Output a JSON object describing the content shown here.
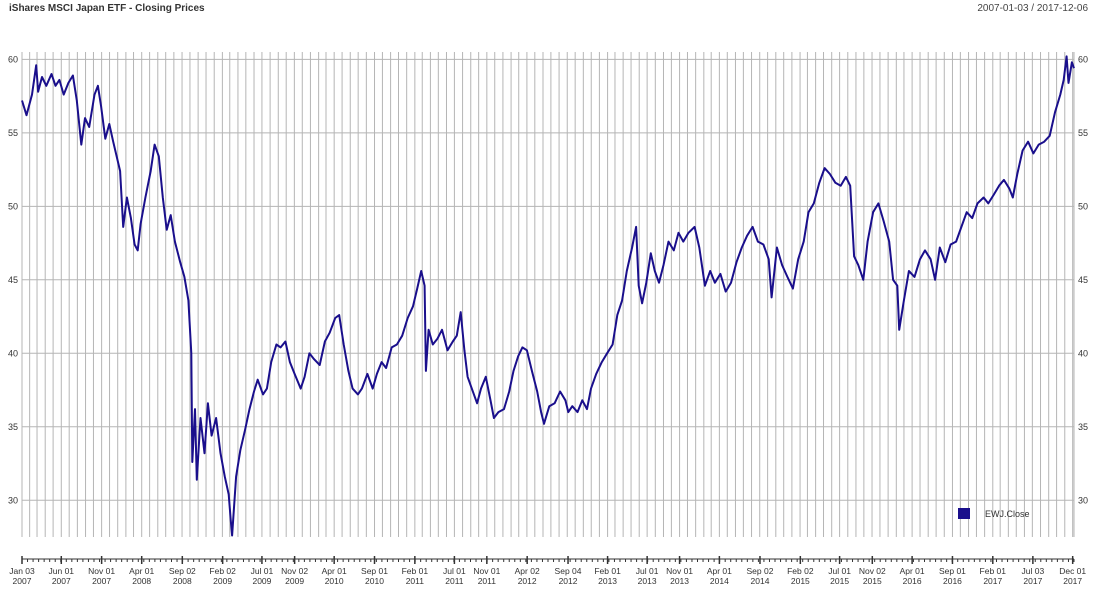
{
  "header": {
    "title": "iShares MSCI Japan ETF - Closing Prices",
    "date_range": "2007-01-03 / 2017-12-06"
  },
  "chart_data": {
    "type": "line",
    "title": "iShares MSCI Japan ETF - Closing Prices",
    "xlabel": "",
    "ylabel": "",
    "ylim": [
      27.5,
      60.5
    ],
    "yticks": [
      30,
      35,
      40,
      45,
      50,
      55,
      60
    ],
    "xlim": [
      "2007-01-03",
      "2017-12-06"
    ],
    "xticks": [
      {
        "date": "2007-01-03",
        "label1": "Jan 03",
        "label2": "2007"
      },
      {
        "date": "2007-06-01",
        "label1": "Jun 01",
        "label2": "2007"
      },
      {
        "date": "2007-11-01",
        "label1": "Nov 01",
        "label2": "2007"
      },
      {
        "date": "2008-04-01",
        "label1": "Apr 01",
        "label2": "2008"
      },
      {
        "date": "2008-09-02",
        "label1": "Sep 02",
        "label2": "2008"
      },
      {
        "date": "2009-02-02",
        "label1": "Feb 02",
        "label2": "2009"
      },
      {
        "date": "2009-07-01",
        "label1": "Jul 01",
        "label2": "2009"
      },
      {
        "date": "2009-11-02",
        "label1": "Nov 02",
        "label2": "2009"
      },
      {
        "date": "2010-04-01",
        "label1": "Apr 01",
        "label2": "2010"
      },
      {
        "date": "2010-09-01",
        "label1": "Sep 01",
        "label2": "2010"
      },
      {
        "date": "2011-02-01",
        "label1": "Feb 01",
        "label2": "2011"
      },
      {
        "date": "2011-07-01",
        "label1": "Jul 01",
        "label2": "2011"
      },
      {
        "date": "2011-11-01",
        "label1": "Nov 01",
        "label2": "2011"
      },
      {
        "date": "2012-04-02",
        "label1": "Apr 02",
        "label2": "2012"
      },
      {
        "date": "2012-09-04",
        "label1": "Sep 04",
        "label2": "2012"
      },
      {
        "date": "2013-02-01",
        "label1": "Feb 01",
        "label2": "2013"
      },
      {
        "date": "2013-07-01",
        "label1": "Jul 01",
        "label2": "2013"
      },
      {
        "date": "2013-11-01",
        "label1": "Nov 01",
        "label2": "2013"
      },
      {
        "date": "2014-04-01",
        "label1": "Apr 01",
        "label2": "2014"
      },
      {
        "date": "2014-09-02",
        "label1": "Sep 02",
        "label2": "2014"
      },
      {
        "date": "2015-02-02",
        "label1": "Feb 02",
        "label2": "2015"
      },
      {
        "date": "2015-07-01",
        "label1": "Jul 01",
        "label2": "2015"
      },
      {
        "date": "2015-11-02",
        "label1": "Nov 02",
        "label2": "2015"
      },
      {
        "date": "2016-04-01",
        "label1": "Apr 01",
        "label2": "2016"
      },
      {
        "date": "2016-09-01",
        "label1": "Sep 01",
        "label2": "2016"
      },
      {
        "date": "2017-02-01",
        "label1": "Feb 01",
        "label2": "2017"
      },
      {
        "date": "2017-07-03",
        "label1": "Jul 03",
        "label2": "2017"
      },
      {
        "date": "2017-12-01",
        "label1": "Dec 01",
        "label2": "2017"
      }
    ],
    "grid": true,
    "legend_position": "bottom-right",
    "series": [
      {
        "name": "EWJ.Close",
        "color": "#1a0f8c",
        "points": [
          [
            "2007-01-03",
            57.2
          ],
          [
            "2007-01-20",
            56.2
          ],
          [
            "2007-02-10",
            57.6
          ],
          [
            "2007-02-26",
            59.6
          ],
          [
            "2007-03-05",
            57.8
          ],
          [
            "2007-03-20",
            58.8
          ],
          [
            "2007-04-05",
            58.2
          ],
          [
            "2007-04-25",
            59.0
          ],
          [
            "2007-05-10",
            58.2
          ],
          [
            "2007-05-25",
            58.6
          ],
          [
            "2007-06-10",
            57.6
          ],
          [
            "2007-06-28",
            58.4
          ],
          [
            "2007-07-15",
            58.9
          ],
          [
            "2007-07-30",
            57.2
          ],
          [
            "2007-08-16",
            54.2
          ],
          [
            "2007-08-30",
            56.0
          ],
          [
            "2007-09-15",
            55.4
          ],
          [
            "2007-10-05",
            57.6
          ],
          [
            "2007-10-18",
            58.2
          ],
          [
            "2007-10-30",
            56.8
          ],
          [
            "2007-11-15",
            54.6
          ],
          [
            "2007-11-30",
            55.6
          ],
          [
            "2007-12-15",
            54.4
          ],
          [
            "2008-01-10",
            52.4
          ],
          [
            "2008-01-22",
            48.6
          ],
          [
            "2008-02-05",
            50.6
          ],
          [
            "2008-02-20",
            49.2
          ],
          [
            "2008-03-05",
            47.4
          ],
          [
            "2008-03-17",
            47.0
          ],
          [
            "2008-03-28",
            48.8
          ],
          [
            "2008-04-15",
            50.6
          ],
          [
            "2008-05-05",
            52.4
          ],
          [
            "2008-05-20",
            54.2
          ],
          [
            "2008-06-05",
            53.4
          ],
          [
            "2008-06-20",
            50.6
          ],
          [
            "2008-07-05",
            48.4
          ],
          [
            "2008-07-20",
            49.4
          ],
          [
            "2008-08-05",
            47.6
          ],
          [
            "2008-08-25",
            46.2
          ],
          [
            "2008-09-10",
            45.2
          ],
          [
            "2008-09-25",
            43.6
          ],
          [
            "2008-10-06",
            40.0
          ],
          [
            "2008-10-10",
            32.6
          ],
          [
            "2008-10-20",
            36.2
          ],
          [
            "2008-10-27",
            31.4
          ],
          [
            "2008-11-10",
            35.6
          ],
          [
            "2008-11-25",
            33.2
          ],
          [
            "2008-12-08",
            36.6
          ],
          [
            "2008-12-22",
            34.4
          ],
          [
            "2009-01-08",
            35.6
          ],
          [
            "2009-01-25",
            33.2
          ],
          [
            "2009-02-10",
            31.6
          ],
          [
            "2009-02-25",
            30.4
          ],
          [
            "2009-03-05",
            28.6
          ],
          [
            "2009-03-10",
            27.6
          ],
          [
            "2009-03-25",
            31.6
          ],
          [
            "2009-04-10",
            33.4
          ],
          [
            "2009-04-28",
            34.8
          ],
          [
            "2009-05-15",
            36.2
          ],
          [
            "2009-06-01",
            37.4
          ],
          [
            "2009-06-15",
            38.2
          ],
          [
            "2009-07-05",
            37.2
          ],
          [
            "2009-07-20",
            37.6
          ],
          [
            "2009-08-05",
            39.4
          ],
          [
            "2009-08-25",
            40.6
          ],
          [
            "2009-09-10",
            40.4
          ],
          [
            "2009-09-28",
            40.8
          ],
          [
            "2009-10-15",
            39.4
          ],
          [
            "2009-11-02",
            38.6
          ],
          [
            "2009-11-25",
            37.6
          ],
          [
            "2009-12-10",
            38.4
          ],
          [
            "2009-12-28",
            40.0
          ],
          [
            "2010-01-15",
            39.6
          ],
          [
            "2010-02-05",
            39.2
          ],
          [
            "2010-02-25",
            40.8
          ],
          [
            "2010-03-15",
            41.4
          ],
          [
            "2010-04-05",
            42.4
          ],
          [
            "2010-04-20",
            42.6
          ],
          [
            "2010-05-07",
            40.6
          ],
          [
            "2010-05-25",
            38.8
          ],
          [
            "2010-06-10",
            37.6
          ],
          [
            "2010-06-30",
            37.2
          ],
          [
            "2010-07-15",
            37.6
          ],
          [
            "2010-08-05",
            38.6
          ],
          [
            "2010-08-25",
            37.6
          ],
          [
            "2010-09-10",
            38.6
          ],
          [
            "2010-09-28",
            39.4
          ],
          [
            "2010-10-15",
            39.0
          ],
          [
            "2010-11-05",
            40.4
          ],
          [
            "2010-11-25",
            40.6
          ],
          [
            "2010-12-15",
            41.2
          ],
          [
            "2011-01-05",
            42.4
          ],
          [
            "2011-01-25",
            43.2
          ],
          [
            "2011-02-10",
            44.4
          ],
          [
            "2011-02-25",
            45.6
          ],
          [
            "2011-03-10",
            44.6
          ],
          [
            "2011-03-15",
            38.8
          ],
          [
            "2011-03-25",
            41.6
          ],
          [
            "2011-04-10",
            40.6
          ],
          [
            "2011-04-28",
            41.0
          ],
          [
            "2011-05-15",
            41.6
          ],
          [
            "2011-06-05",
            40.2
          ],
          [
            "2011-06-25",
            40.8
          ],
          [
            "2011-07-10",
            41.2
          ],
          [
            "2011-07-25",
            42.8
          ],
          [
            "2011-08-08",
            40.2
          ],
          [
            "2011-08-20",
            38.4
          ],
          [
            "2011-09-05",
            37.6
          ],
          [
            "2011-09-25",
            36.6
          ],
          [
            "2011-10-10",
            37.6
          ],
          [
            "2011-10-28",
            38.4
          ],
          [
            "2011-11-15",
            36.8
          ],
          [
            "2011-11-28",
            35.6
          ],
          [
            "2011-12-15",
            36.0
          ],
          [
            "2012-01-05",
            36.2
          ],
          [
            "2012-01-25",
            37.4
          ],
          [
            "2012-02-10",
            38.8
          ],
          [
            "2012-02-28",
            39.8
          ],
          [
            "2012-03-15",
            40.4
          ],
          [
            "2012-04-01",
            40.2
          ],
          [
            "2012-04-20",
            38.8
          ],
          [
            "2012-05-10",
            37.4
          ],
          [
            "2012-05-25",
            36.0
          ],
          [
            "2012-06-05",
            35.2
          ],
          [
            "2012-06-25",
            36.4
          ],
          [
            "2012-07-15",
            36.6
          ],
          [
            "2012-08-05",
            37.4
          ],
          [
            "2012-08-25",
            36.8
          ],
          [
            "2012-09-05",
            36.0
          ],
          [
            "2012-09-20",
            36.4
          ],
          [
            "2012-10-10",
            36.0
          ],
          [
            "2012-10-28",
            36.8
          ],
          [
            "2012-11-15",
            36.2
          ],
          [
            "2012-11-30",
            37.6
          ],
          [
            "2012-12-20",
            38.6
          ],
          [
            "2013-01-10",
            39.4
          ],
          [
            "2013-01-30",
            40.0
          ],
          [
            "2013-02-20",
            40.6
          ],
          [
            "2013-03-10",
            42.6
          ],
          [
            "2013-03-28",
            43.6
          ],
          [
            "2013-04-15",
            45.6
          ],
          [
            "2013-05-05",
            47.2
          ],
          [
            "2013-05-20",
            48.6
          ],
          [
            "2013-05-30",
            44.6
          ],
          [
            "2013-06-12",
            43.4
          ],
          [
            "2013-06-28",
            44.8
          ],
          [
            "2013-07-15",
            46.8
          ],
          [
            "2013-07-30",
            45.6
          ],
          [
            "2013-08-15",
            44.8
          ],
          [
            "2013-09-01",
            46.0
          ],
          [
            "2013-09-20",
            47.6
          ],
          [
            "2013-10-10",
            47.0
          ],
          [
            "2013-10-28",
            48.2
          ],
          [
            "2013-11-15",
            47.6
          ],
          [
            "2013-12-05",
            48.2
          ],
          [
            "2013-12-28",
            48.6
          ],
          [
            "2014-01-15",
            47.2
          ],
          [
            "2014-02-05",
            44.6
          ],
          [
            "2014-02-25",
            45.6
          ],
          [
            "2014-03-15",
            44.8
          ],
          [
            "2014-04-05",
            45.4
          ],
          [
            "2014-04-25",
            44.2
          ],
          [
            "2014-05-15",
            44.8
          ],
          [
            "2014-06-05",
            46.2
          ],
          [
            "2014-06-25",
            47.2
          ],
          [
            "2014-07-15",
            48.0
          ],
          [
            "2014-08-05",
            48.6
          ],
          [
            "2014-08-25",
            47.6
          ],
          [
            "2014-09-15",
            47.4
          ],
          [
            "2014-10-05",
            46.4
          ],
          [
            "2014-10-16",
            43.8
          ],
          [
            "2014-11-05",
            47.2
          ],
          [
            "2014-11-25",
            46.0
          ],
          [
            "2014-12-15",
            45.2
          ],
          [
            "2015-01-05",
            44.4
          ],
          [
            "2015-01-25",
            46.4
          ],
          [
            "2015-02-15",
            47.6
          ],
          [
            "2015-03-05",
            49.6
          ],
          [
            "2015-03-25",
            50.2
          ],
          [
            "2015-04-15",
            51.6
          ],
          [
            "2015-05-05",
            52.6
          ],
          [
            "2015-05-25",
            52.2
          ],
          [
            "2015-06-15",
            51.6
          ],
          [
            "2015-07-05",
            51.4
          ],
          [
            "2015-07-25",
            52.0
          ],
          [
            "2015-08-10",
            51.4
          ],
          [
            "2015-08-25",
            46.6
          ],
          [
            "2015-09-10",
            46.0
          ],
          [
            "2015-09-29",
            45.0
          ],
          [
            "2015-10-15",
            47.6
          ],
          [
            "2015-11-05",
            49.6
          ],
          [
            "2015-11-25",
            50.2
          ],
          [
            "2015-12-15",
            49.0
          ],
          [
            "2016-01-05",
            47.6
          ],
          [
            "2016-01-20",
            45.0
          ],
          [
            "2016-02-05",
            44.6
          ],
          [
            "2016-02-12",
            41.6
          ],
          [
            "2016-03-01",
            43.6
          ],
          [
            "2016-03-20",
            45.6
          ],
          [
            "2016-04-10",
            45.2
          ],
          [
            "2016-05-01",
            46.4
          ],
          [
            "2016-05-20",
            47.0
          ],
          [
            "2016-06-10",
            46.4
          ],
          [
            "2016-06-27",
            45.0
          ],
          [
            "2016-07-15",
            47.2
          ],
          [
            "2016-08-05",
            46.2
          ],
          [
            "2016-08-25",
            47.4
          ],
          [
            "2016-09-15",
            47.6
          ],
          [
            "2016-10-05",
            48.6
          ],
          [
            "2016-10-25",
            49.6
          ],
          [
            "2016-11-15",
            49.2
          ],
          [
            "2016-12-05",
            50.2
          ],
          [
            "2016-12-28",
            50.6
          ],
          [
            "2017-01-15",
            50.2
          ],
          [
            "2017-02-05",
            50.8
          ],
          [
            "2017-02-25",
            51.4
          ],
          [
            "2017-03-15",
            51.8
          ],
          [
            "2017-04-05",
            51.2
          ],
          [
            "2017-04-18",
            50.6
          ],
          [
            "2017-05-05",
            52.2
          ],
          [
            "2017-05-25",
            53.8
          ],
          [
            "2017-06-15",
            54.4
          ],
          [
            "2017-07-05",
            53.6
          ],
          [
            "2017-07-25",
            54.2
          ],
          [
            "2017-08-15",
            54.4
          ],
          [
            "2017-09-05",
            54.8
          ],
          [
            "2017-09-25",
            56.4
          ],
          [
            "2017-10-15",
            57.6
          ],
          [
            "2017-10-28",
            58.6
          ],
          [
            "2017-11-08",
            60.2
          ],
          [
            "2017-11-15",
            58.4
          ],
          [
            "2017-11-28",
            59.8
          ],
          [
            "2017-12-06",
            59.4
          ]
        ]
      }
    ]
  }
}
